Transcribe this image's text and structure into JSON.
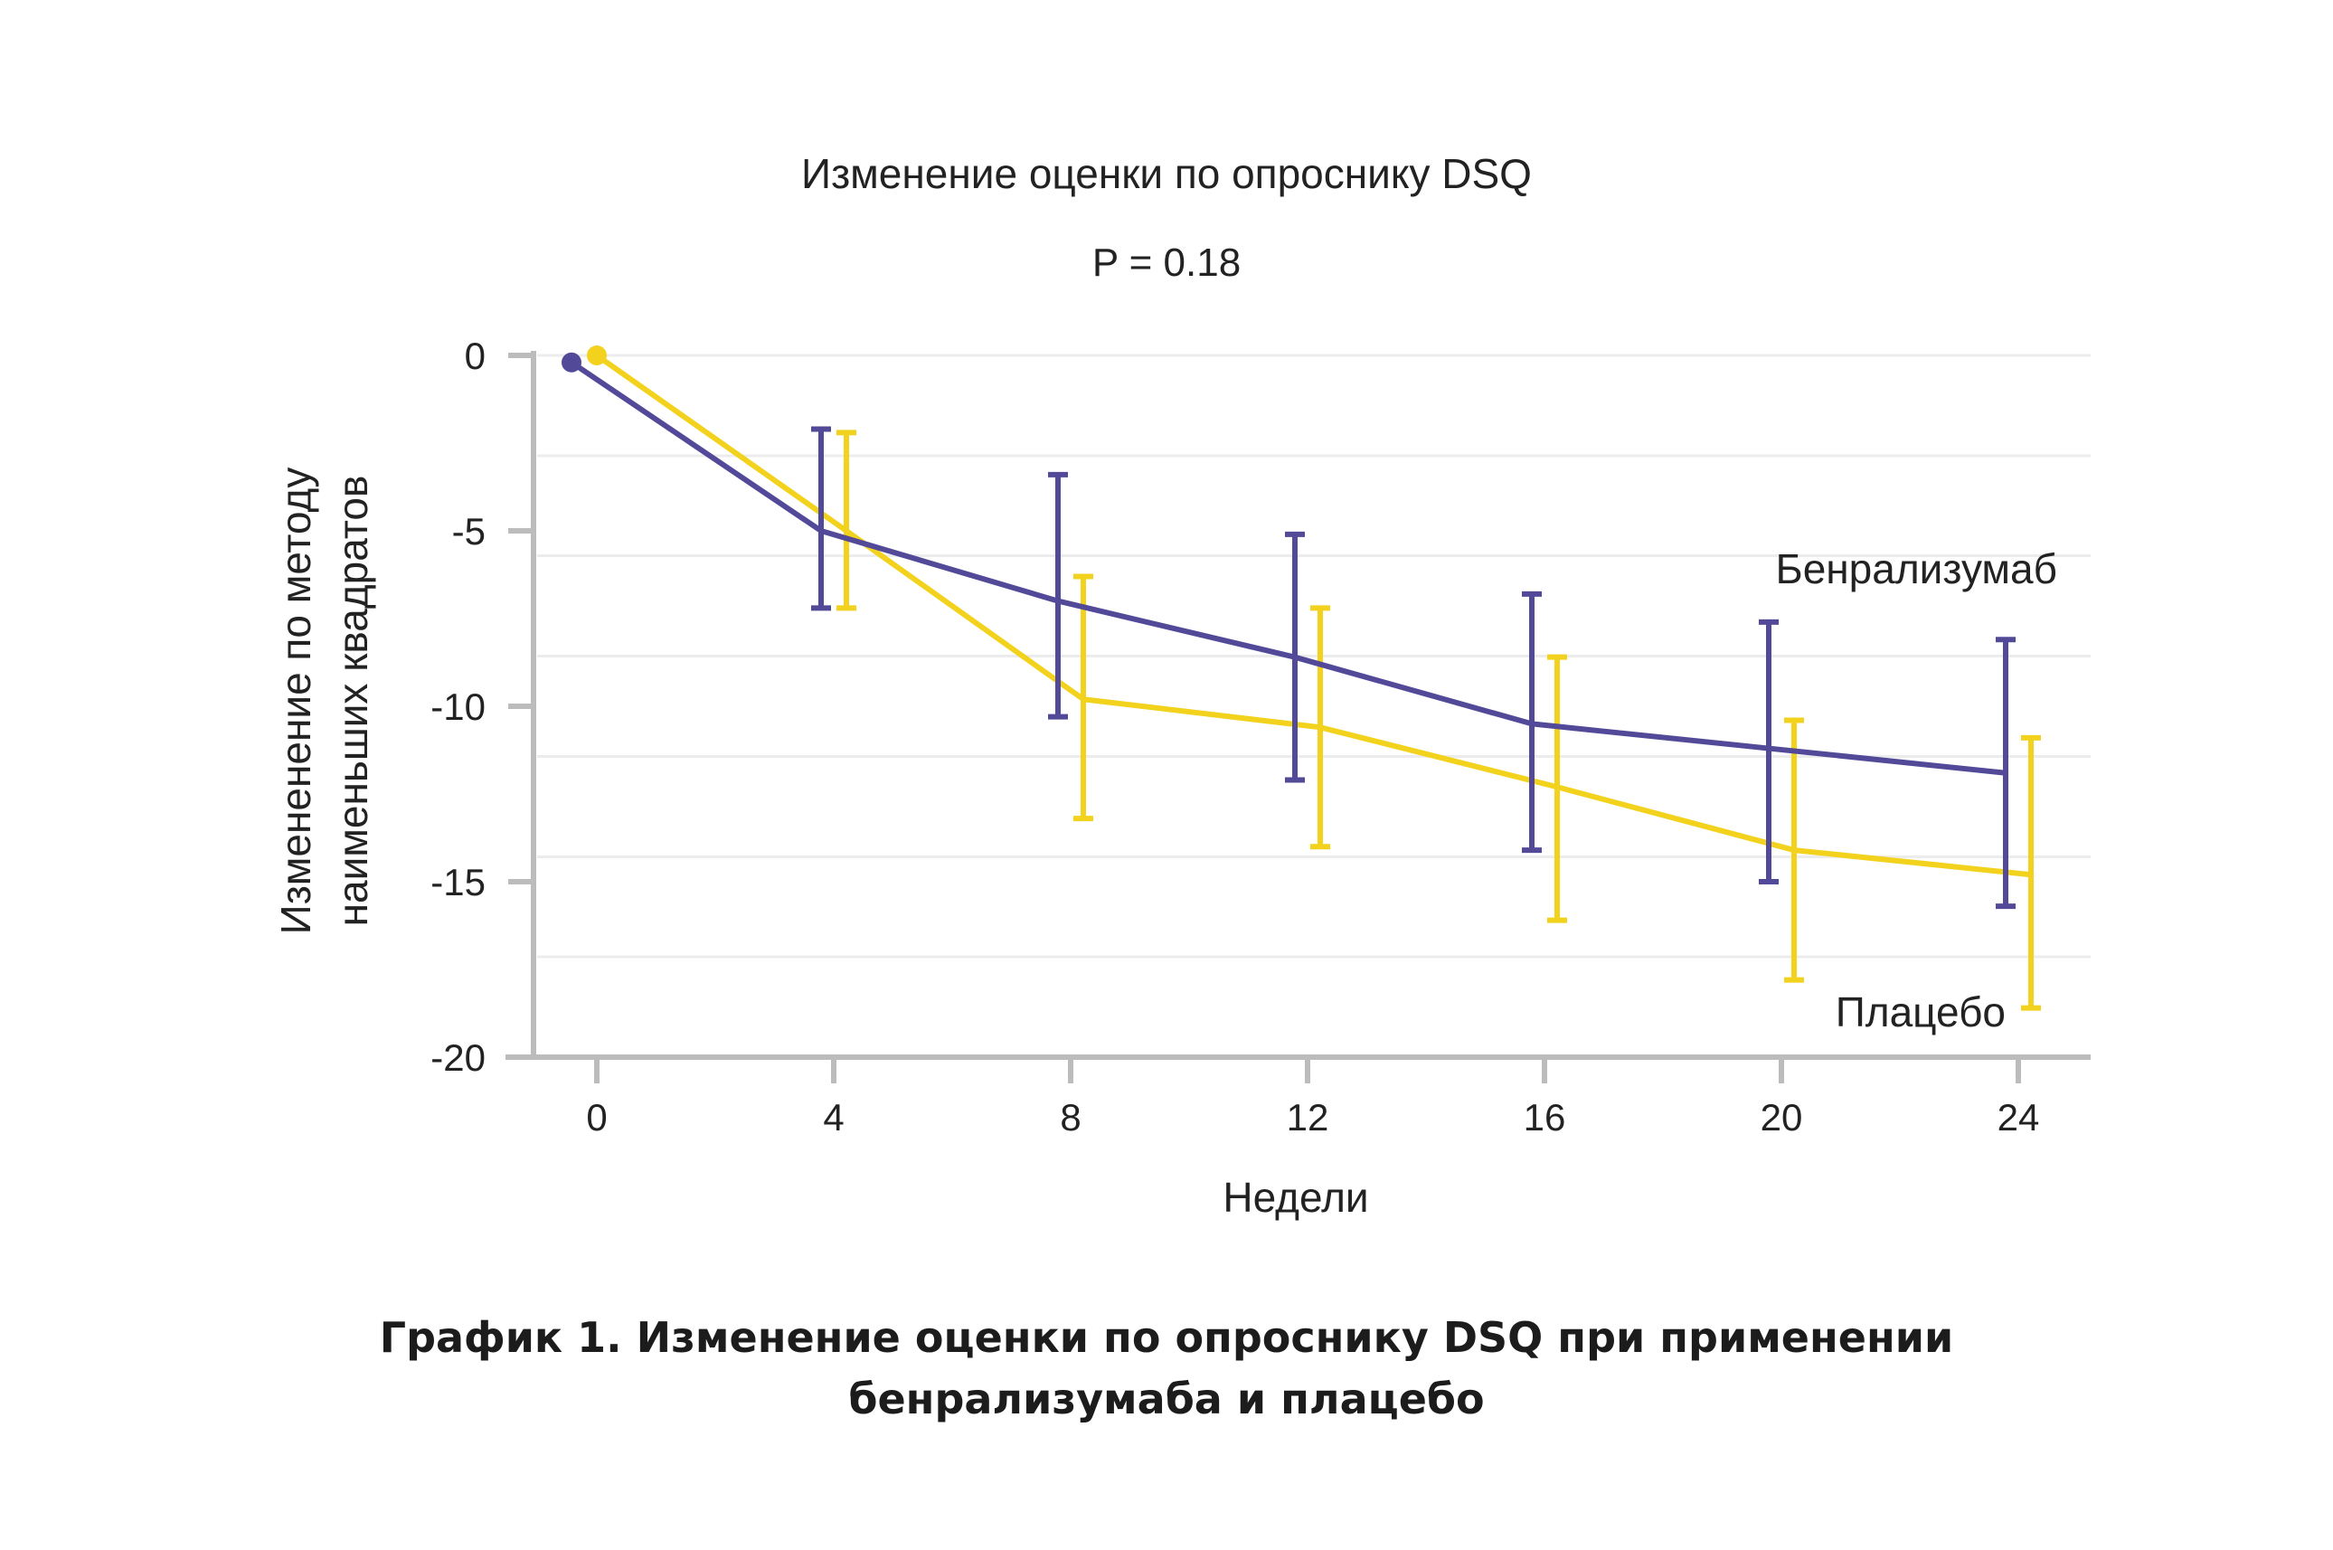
{
  "chart_data": {
    "type": "line",
    "title": "Изменение оценки по опроснику DSQ",
    "subtitle": "P = 0.18",
    "xlabel": "Недели",
    "ylabel_lines": [
      "Измененение по методу",
      "наименьших квадратов"
    ],
    "x": [
      0,
      4,
      8,
      12,
      16,
      20,
      24
    ],
    "xlim": [
      -1,
      25
    ],
    "ylim": [
      -20,
      0
    ],
    "yticks": [
      0,
      -5,
      -10,
      -15,
      -20
    ],
    "ytick_labels": [
      "0",
      "-5",
      "-10",
      "-15",
      "-20"
    ],
    "xtick_labels": [
      "0",
      "4",
      "8",
      "12",
      "16",
      "20",
      "24"
    ],
    "gridlines": [
      0,
      -2.86,
      -5.71,
      -8.57,
      -11.43,
      -14.29,
      -17.14
    ],
    "series": [
      {
        "name": "Бенрализумаб",
        "color": "#524a98",
        "values": [
          -0.2,
          -5.0,
          -7.0,
          -8.6,
          -10.5,
          -11.2,
          -11.9
        ],
        "err_low": [
          null,
          -7.2,
          -10.3,
          -12.1,
          -14.1,
          -15.0,
          -15.7
        ],
        "err_high": [
          null,
          -2.1,
          -3.4,
          -5.1,
          -6.8,
          -7.6,
          -8.1
        ]
      },
      {
        "name": "Плацебо",
        "color": "#f2d21c",
        "values": [
          0.0,
          -5.0,
          -9.8,
          -10.6,
          -12.3,
          -14.1,
          -14.8
        ],
        "err_low": [
          null,
          -7.2,
          -13.2,
          -14.0,
          -16.1,
          -17.8,
          -18.6
        ],
        "err_high": [
          null,
          -2.2,
          -6.3,
          -7.2,
          -8.6,
          -10.4,
          -10.9
        ]
      }
    ],
    "annotations": [
      "Бенрализумаб",
      "Плацебо"
    ]
  },
  "caption": {
    "line1": "График 1. Изменение оценки по опроснику DSQ при применении",
    "line2": "бенрализумаба и плацебо"
  }
}
